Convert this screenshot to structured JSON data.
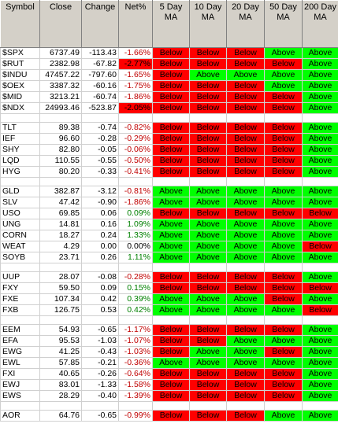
{
  "headers": [
    "Symbol",
    "Close",
    "Change",
    "Net%",
    "5 Day MA",
    "10 Day MA",
    "20 Day MA",
    "50 Day MA",
    "200 Day MA"
  ],
  "colors": {
    "below": "#ff0000",
    "above": "#00ff00",
    "negative_text": "#c00000",
    "positive_text": "#008000",
    "header_bg": "#d4d0c8"
  },
  "groups": [
    [
      {
        "symbol": "$SPX",
        "close": "6737.49",
        "change": "-113.43",
        "net": "-1.66%",
        "ma": [
          "Below",
          "Below",
          "Below",
          "Above",
          "Above"
        ]
      },
      {
        "symbol": "$RUT",
        "close": "2382.98",
        "change": "-67.82",
        "net": "-2.77%",
        "highlight": true,
        "ma": [
          "Below",
          "Below",
          "Below",
          "Below",
          "Above"
        ]
      },
      {
        "symbol": "$INDU",
        "close": "47457.22",
        "change": "-797.60",
        "net": "-1.65%",
        "ma": [
          "Below",
          "Above",
          "Above",
          "Above",
          "Above"
        ]
      },
      {
        "symbol": "$OEX",
        "close": "3387.32",
        "change": "-60.16",
        "net": "-1.75%",
        "ma": [
          "Below",
          "Below",
          "Below",
          "Above",
          "Above"
        ]
      },
      {
        "symbol": "$MID",
        "close": "3213.21",
        "change": "-60.74",
        "net": "-1.86%",
        "ma": [
          "Below",
          "Below",
          "Below",
          "Below",
          "Above"
        ]
      },
      {
        "symbol": "$NDX",
        "close": "24993.46",
        "change": "-523.87",
        "net": "-2.05%",
        "highlight": true,
        "ma": [
          "Below",
          "Below",
          "Below",
          "Below",
          "Above"
        ]
      }
    ],
    [
      {
        "symbol": "TLT",
        "close": "89.38",
        "change": "-0.74",
        "net": "-0.82%",
        "ma": [
          "Below",
          "Below",
          "Below",
          "Below",
          "Above"
        ]
      },
      {
        "symbol": "IEF",
        "close": "96.60",
        "change": "-0.28",
        "net": "-0.29%",
        "ma": [
          "Below",
          "Below",
          "Below",
          "Below",
          "Above"
        ]
      },
      {
        "symbol": "SHY",
        "close": "82.80",
        "change": "-0.05",
        "net": "-0.06%",
        "ma": [
          "Below",
          "Below",
          "Below",
          "Below",
          "Above"
        ]
      },
      {
        "symbol": "LQD",
        "close": "110.55",
        "change": "-0.55",
        "net": "-0.50%",
        "ma": [
          "Below",
          "Below",
          "Below",
          "Below",
          "Above"
        ]
      },
      {
        "symbol": "HYG",
        "close": "80.20",
        "change": "-0.33",
        "net": "-0.41%",
        "ma": [
          "Below",
          "Below",
          "Below",
          "Below",
          "Above"
        ]
      }
    ],
    [
      {
        "symbol": "GLD",
        "close": "382.87",
        "change": "-3.12",
        "net": "-0.81%",
        "ma": [
          "Above",
          "Above",
          "Above",
          "Above",
          "Above"
        ]
      },
      {
        "symbol": "SLV",
        "close": "47.42",
        "change": "-0.90",
        "net": "-1.86%",
        "ma": [
          "Above",
          "Above",
          "Above",
          "Above",
          "Above"
        ]
      },
      {
        "symbol": "USO",
        "close": "69.85",
        "change": "0.06",
        "net": "0.09%",
        "ma": [
          "Below",
          "Below",
          "Below",
          "Below",
          "Below"
        ]
      },
      {
        "symbol": "UNG",
        "close": "14.81",
        "change": "0.16",
        "net": "1.09%",
        "ma": [
          "Above",
          "Above",
          "Above",
          "Above",
          "Above"
        ]
      },
      {
        "symbol": "CORN",
        "close": "18.27",
        "change": "0.24",
        "net": "1.33%",
        "ma": [
          "Above",
          "Above",
          "Above",
          "Above",
          "Above"
        ]
      },
      {
        "symbol": "WEAT",
        "close": "4.29",
        "change": "0.00",
        "net": "0.00%",
        "ma": [
          "Above",
          "Above",
          "Above",
          "Above",
          "Below"
        ]
      },
      {
        "symbol": "SOYB",
        "close": "23.71",
        "change": "0.26",
        "net": "1.11%",
        "ma": [
          "Above",
          "Above",
          "Above",
          "Above",
          "Above"
        ]
      }
    ],
    [
      {
        "symbol": "UUP",
        "close": "28.07",
        "change": "-0.08",
        "net": "-0.28%",
        "ma": [
          "Below",
          "Below",
          "Below",
          "Below",
          "Above"
        ]
      },
      {
        "symbol": "FXY",
        "close": "59.50",
        "change": "0.09",
        "net": "0.15%",
        "ma": [
          "Below",
          "Below",
          "Below",
          "Below",
          "Below"
        ]
      },
      {
        "symbol": "FXE",
        "close": "107.34",
        "change": "0.42",
        "net": "0.39%",
        "ma": [
          "Above",
          "Above",
          "Above",
          "Below",
          "Above"
        ]
      },
      {
        "symbol": "FXB",
        "close": "126.75",
        "change": "0.53",
        "net": "0.42%",
        "ma": [
          "Above",
          "Above",
          "Above",
          "Above",
          "Below"
        ]
      }
    ],
    [
      {
        "symbol": "EEM",
        "close": "54.93",
        "change": "-0.65",
        "net": "-1.17%",
        "ma": [
          "Below",
          "Below",
          "Below",
          "Below",
          "Above"
        ]
      },
      {
        "symbol": "EFA",
        "close": "95.53",
        "change": "-1.03",
        "net": "-1.07%",
        "ma": [
          "Below",
          "Below",
          "Above",
          "Above",
          "Above"
        ]
      },
      {
        "symbol": "EWG",
        "close": "41.25",
        "change": "-0.43",
        "net": "-1.03%",
        "ma": [
          "Below",
          "Above",
          "Above",
          "Below",
          "Above"
        ]
      },
      {
        "symbol": "EWL",
        "close": "57.85",
        "change": "-0.21",
        "net": "-0.36%",
        "ma": [
          "Above",
          "Above",
          "Above",
          "Above",
          "Above"
        ]
      },
      {
        "symbol": "FXI",
        "close": "40.65",
        "change": "-0.26",
        "net": "-0.64%",
        "ma": [
          "Below",
          "Below",
          "Below",
          "Below",
          "Above"
        ]
      },
      {
        "symbol": "EWJ",
        "close": "83.01",
        "change": "-1.33",
        "net": "-1.58%",
        "ma": [
          "Below",
          "Below",
          "Below",
          "Below",
          "Above"
        ]
      },
      {
        "symbol": "EWS",
        "close": "28.29",
        "change": "-0.40",
        "net": "-1.39%",
        "ma": [
          "Below",
          "Below",
          "Below",
          "Below",
          "Above"
        ]
      }
    ],
    [
      {
        "symbol": "AOR",
        "close": "64.76",
        "change": "-0.65",
        "net": "-0.99%",
        "ma": [
          "Below",
          "Below",
          "Below",
          "Above",
          "Above"
        ]
      }
    ]
  ]
}
